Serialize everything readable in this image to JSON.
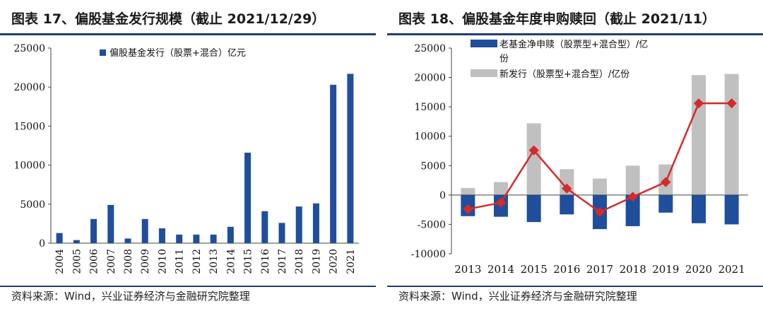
{
  "left": {
    "title": "图表 17、偏股基金发行规模（截止 2021/12/29）",
    "source": "资料来源：Wind，兴业证券经济与金融研究院整理"
  },
  "right": {
    "title": "图表 18、偏股基金年度申购赎回（截止 2021/11）",
    "source": "资料来源：Wind，兴业证券经济与金融研究院整理"
  },
  "colors": {
    "blue": "#1f4e9c",
    "gray": "#c0c0c0",
    "red": "#d42a2a",
    "rule": "#1f3d7a"
  },
  "chart_data": [
    {
      "type": "bar",
      "categories": [
        "2004",
        "2005",
        "2006",
        "2007",
        "2008",
        "2009",
        "2010",
        "2011",
        "2012",
        "2013",
        "2014",
        "2015",
        "2016",
        "2017",
        "2018",
        "2019",
        "2020",
        "2021"
      ],
      "series": [
        {
          "name": "偏股基金发行（股票+混合）亿元",
          "values": [
            1300,
            400,
            3100,
            4900,
            600,
            3100,
            1900,
            1100,
            1100,
            1100,
            2100,
            11600,
            4100,
            2600,
            4700,
            5100,
            20300,
            21700
          ]
        }
      ],
      "ylim": [
        0,
        25000
      ],
      "yticks": [
        "0",
        "5000",
        "10000",
        "15000",
        "20000",
        "25000"
      ],
      "legend_position": "top",
      "grid": false
    },
    {
      "type": "bar+line",
      "categories": [
        "2013",
        "2014",
        "2015",
        "2016",
        "2017",
        "2018",
        "2019",
        "2020",
        "2021"
      ],
      "series": [
        {
          "name": "老基金净申赎（股票型+混合型）/亿份",
          "type": "bar",
          "values": [
            -3600,
            -3700,
            -4600,
            -3300,
            -5800,
            -5300,
            -3000,
            -4800,
            -5000
          ]
        },
        {
          "name": "新发行（股票型+混合型）/亿份",
          "type": "bar",
          "values": [
            1200,
            2200,
            12200,
            4400,
            2800,
            5000,
            5200,
            20400,
            20600
          ]
        },
        {
          "type": "line",
          "values": [
            -2400,
            -1300,
            7600,
            1100,
            -2900,
            -300,
            2200,
            15600,
            15600
          ]
        }
      ],
      "ylim": [
        -10000,
        25000
      ],
      "yticks": [
        "-10000",
        "-5000",
        "0",
        "5000",
        "10000",
        "15000",
        "20000",
        "25000"
      ],
      "legend_position": "top-left",
      "grid": false
    }
  ]
}
